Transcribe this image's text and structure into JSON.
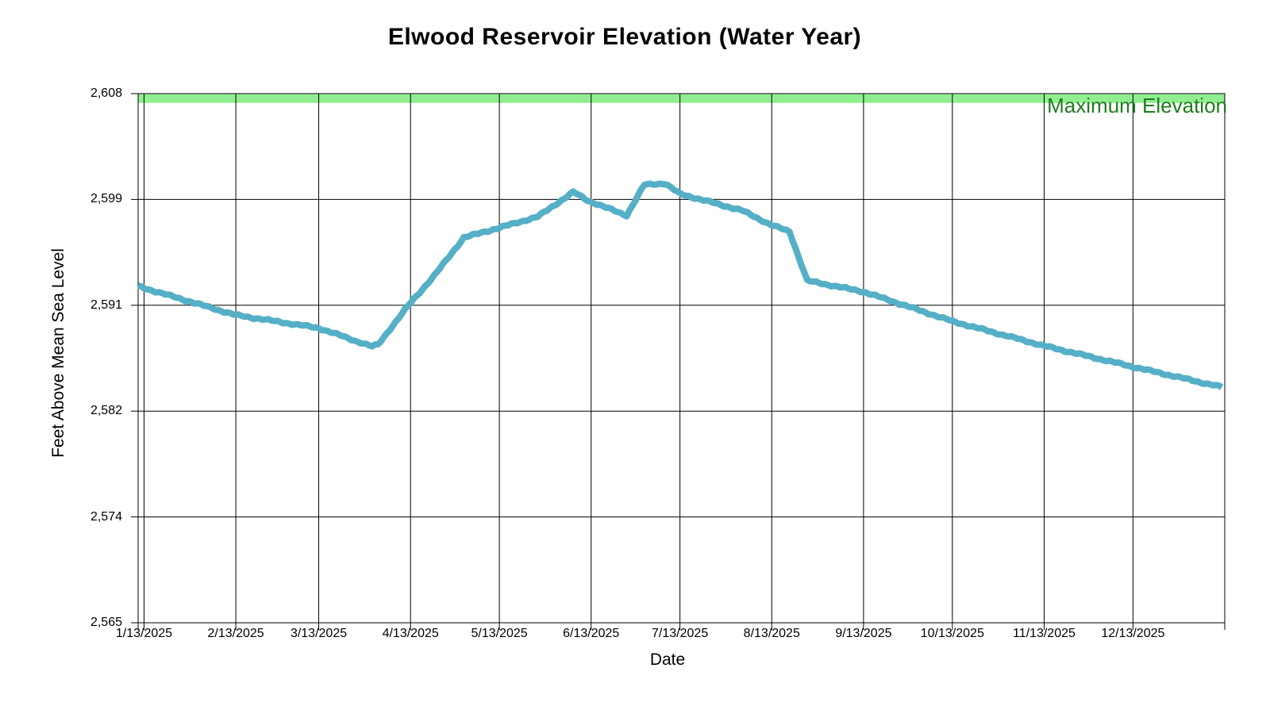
{
  "chart_data": {
    "type": "line",
    "title": "Elwood Reservoir Elevation (Water Year)",
    "xlabel": "Date",
    "ylabel": "Feet Above Mean Sea Level",
    "x_range": [
      "2025-01-11",
      "2026-01-13"
    ],
    "ylim": [
      2565,
      2608
    ],
    "grid": "both",
    "grid_color": "#000000",
    "background": "#FFFFFF",
    "y_ticks": [
      {
        "value": 2565.0,
        "label": "2,565"
      },
      {
        "value": 2573.6,
        "label": "2,574"
      },
      {
        "value": 2582.2,
        "label": "2,582"
      },
      {
        "value": 2590.8,
        "label": "2,591"
      },
      {
        "value": 2599.4,
        "label": "2,599"
      },
      {
        "value": 2608.0,
        "label": "2,608"
      }
    ],
    "x_ticks": [
      {
        "date": "2025-01-13",
        "label": "1/13/2025"
      },
      {
        "date": "2025-02-13",
        "label": "2/13/2025"
      },
      {
        "date": "2025-03-13",
        "label": "3/13/2025"
      },
      {
        "date": "2025-04-13",
        "label": "4/13/2025"
      },
      {
        "date": "2025-05-13",
        "label": "5/13/2025"
      },
      {
        "date": "2025-06-13",
        "label": "6/13/2025"
      },
      {
        "date": "2025-07-13",
        "label": "7/13/2025"
      },
      {
        "date": "2025-08-13",
        "label": "8/13/2025"
      },
      {
        "date": "2025-09-13",
        "label": "9/13/2025"
      },
      {
        "date": "2025-10-13",
        "label": "10/13/2025"
      },
      {
        "date": "2025-11-13",
        "label": "11/13/2025"
      },
      {
        "date": "2025-12-13",
        "label": "12/13/2025"
      }
    ],
    "max_line": {
      "label": "Maximum Elevation",
      "value": 2607.6,
      "color": "#90EE90",
      "label_color": "#1E7D1E"
    },
    "series": [
      {
        "color": "#55AFC7",
        "points": [
          [
            "2025-01-11",
            2592.35
          ],
          [
            "2025-01-13",
            2592.2
          ],
          [
            "2025-02-13",
            2590.0
          ],
          [
            "2025-03-13",
            2588.95
          ],
          [
            "2025-03-31",
            2587.45
          ],
          [
            "2025-04-02",
            2587.6
          ],
          [
            "2025-04-13",
            2591.0
          ],
          [
            "2025-04-21",
            2593.2
          ],
          [
            "2025-05-01",
            2596.3
          ],
          [
            "2025-05-13",
            2597.1
          ],
          [
            "2025-05-26",
            2598.0
          ],
          [
            "2025-06-07",
            2600.0
          ],
          [
            "2025-06-12",
            2599.3
          ],
          [
            "2025-06-25",
            2598.1
          ],
          [
            "2025-07-01",
            2600.6
          ],
          [
            "2025-07-08",
            2600.7
          ],
          [
            "2025-07-13",
            2599.85
          ],
          [
            "2025-08-03",
            2598.5
          ],
          [
            "2025-08-13",
            2597.3
          ],
          [
            "2025-08-19",
            2596.8
          ],
          [
            "2025-08-25",
            2592.8
          ],
          [
            "2025-09-13",
            2591.9
          ],
          [
            "2025-10-13",
            2589.5
          ],
          [
            "2025-11-13",
            2587.5
          ],
          [
            "2025-12-13",
            2585.8
          ],
          [
            "2026-01-12",
            2584.15
          ]
        ]
      }
    ]
  }
}
